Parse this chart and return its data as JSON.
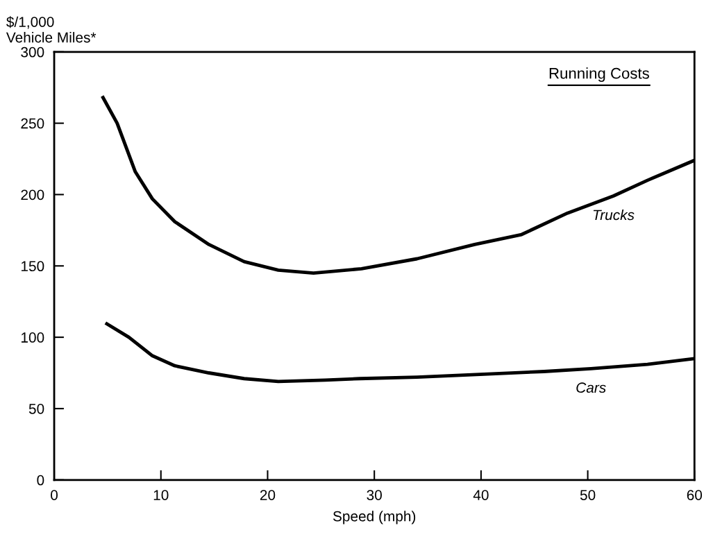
{
  "chart_data": {
    "type": "line",
    "ylabel": "$/1,000\nVehicle Miles*",
    "xlabel": "Speed (mph)",
    "annotations": [
      "Running Costs"
    ],
    "series": [
      {
        "name": "Trucks",
        "color": "#000000",
        "x": [
          4.5,
          5.9,
          7.6,
          9.2,
          11.3,
          14.5,
          17.8,
          21,
          24.3,
          28.8,
          34,
          39.4,
          43.8,
          48.1,
          52.4,
          55.6,
          60
        ],
        "values": [
          269,
          250,
          216,
          197,
          181,
          165,
          153,
          147,
          145,
          148,
          155,
          165,
          172,
          187,
          199,
          210,
          224
        ]
      },
      {
        "name": "Cars",
        "color": "#000000",
        "x": [
          4.8,
          7,
          9.2,
          11.3,
          14.5,
          17.8,
          21,
          25.4,
          28.6,
          34,
          39.9,
          45.9,
          50.3,
          55.6,
          60
        ],
        "values": [
          110,
          100,
          87,
          80,
          75,
          71,
          69,
          70,
          71,
          72,
          74,
          76,
          78,
          81,
          85
        ]
      }
    ],
    "xlim": [
      0,
      60
    ],
    "xticks": [
      0,
      10,
      20,
      30,
      40,
      50,
      60
    ],
    "ylim": [
      0,
      300
    ],
    "yticks": [
      0,
      50,
      100,
      150,
      200,
      250,
      300
    ],
    "grid": false,
    "legend": false,
    "marker": "none",
    "line_style": "solid"
  }
}
